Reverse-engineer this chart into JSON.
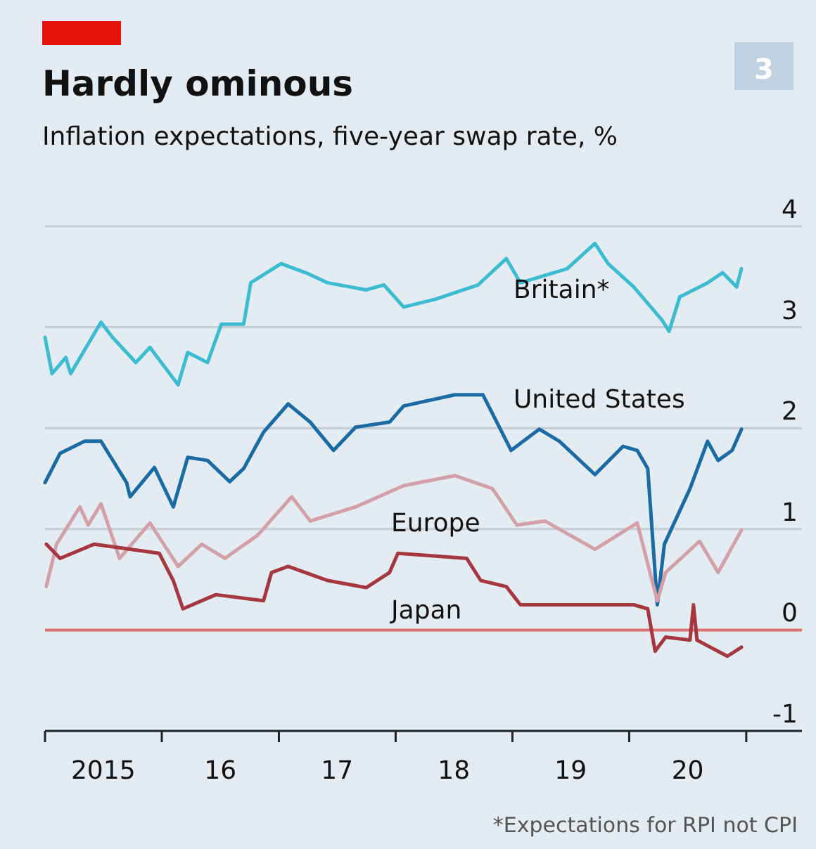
{
  "chart_data": {
    "type": "line",
    "title": "Hardly ominous",
    "subtitle": "Inflation expectations, five-year swap rate, %",
    "annotations": [
      "3",
      "*Expectations for RPI not CPI"
    ],
    "xlim": [
      "2015-01-01",
      "2021-06-24"
    ],
    "ylim": [
      -1,
      4
    ],
    "yticks": [
      4,
      3,
      2,
      1,
      0,
      -1
    ],
    "xticks": [
      {
        "value": "2015-01-01",
        "label": null
      },
      {
        "value": "2015-07-02",
        "label": "2015"
      },
      {
        "value": "2016-01-01",
        "label": null
      },
      {
        "value": "2016-07-02",
        "label": "16"
      },
      {
        "value": "2017-01-01",
        "label": null
      },
      {
        "value": "2017-07-02",
        "label": "17"
      },
      {
        "value": "2018-01-01",
        "label": null
      },
      {
        "value": "2018-07-02",
        "label": "18"
      },
      {
        "value": "2019-01-01",
        "label": null
      },
      {
        "value": "2019-07-02",
        "label": "19"
      },
      {
        "value": "2020-01-01",
        "label": null
      },
      {
        "value": "2020-07-02",
        "label": "20"
      },
      {
        "value": "2021-01-01",
        "label": null
      }
    ],
    "grid": "y",
    "legend": false,
    "line_style": "solid",
    "marker": "none",
    "ref_lines": [
      {
        "axis": "y",
        "value": 0,
        "label": null,
        "color": "#e07070"
      }
    ],
    "series": [
      {
        "name": "Britain*",
        "color": "#3bbcd0",
        "x": [
          "2015-01-01",
          "2015-01-23",
          "2015-03-07",
          "2015-03-22",
          "2015-06-25",
          "2015-07-31",
          "2015-10-12",
          "2015-11-25",
          "2016-02-21",
          "2016-03-22",
          "2016-05-23",
          "2016-07-05",
          "2016-09-13",
          "2016-10-05",
          "2017-01-08",
          "2017-03-26",
          "2017-06-03",
          "2017-10-01",
          "2017-11-25",
          "2018-01-26",
          "2018-05-08",
          "2018-09-16",
          "2018-12-13",
          "2019-01-26",
          "2019-06-21",
          "2019-09-16",
          "2019-10-27",
          "2020-01-15",
          "2020-04-13",
          "2020-05-05",
          "2020-06-07",
          "2020-09-02",
          "2020-10-19",
          "2020-12-02",
          "2020-12-17"
        ],
        "values": [
          2.9,
          2.54,
          2.7,
          2.54,
          3.05,
          2.9,
          2.65,
          2.8,
          2.43,
          2.75,
          2.65,
          3.03,
          3.03,
          3.44,
          3.63,
          3.54,
          3.44,
          3.37,
          3.42,
          3.2,
          3.28,
          3.42,
          3.68,
          3.44,
          3.58,
          3.83,
          3.63,
          3.4,
          3.07,
          2.96,
          3.3,
          3.44,
          3.54,
          3.4,
          3.58
        ]
      },
      {
        "name": "United States",
        "color": "#1a6aa3",
        "x": [
          "2015-01-01",
          "2015-02-17",
          "2015-05-05",
          "2015-06-25",
          "2015-09-13",
          "2015-09-24",
          "2015-12-09",
          "2016-02-06",
          "2016-03-22",
          "2016-05-23",
          "2016-07-31",
          "2016-09-13",
          "2016-11-14",
          "2017-01-30",
          "2017-04-09",
          "2017-06-21",
          "2017-08-29",
          "2017-12-13",
          "2018-01-26",
          "2018-07-05",
          "2018-10-01",
          "2018-12-28",
          "2019-03-26",
          "2019-05-28",
          "2019-09-16",
          "2019-12-13",
          "2020-01-26",
          "2020-02-28",
          "2020-03-29",
          "2020-04-20",
          "2020-07-09",
          "2020-09-02",
          "2020-10-05",
          "2020-11-18",
          "2020-12-17"
        ],
        "values": [
          1.46,
          1.75,
          1.87,
          1.87,
          1.46,
          1.32,
          1.61,
          1.22,
          1.71,
          1.68,
          1.47,
          1.6,
          1.96,
          2.24,
          2.06,
          1.78,
          2.01,
          2.06,
          2.22,
          2.33,
          2.33,
          1.78,
          1.99,
          1.87,
          1.54,
          1.82,
          1.78,
          1.6,
          0.25,
          0.85,
          1.4,
          1.87,
          1.68,
          1.78,
          1.99
        ]
      },
      {
        "name": "Europe",
        "color": "#d4a0a8",
        "x": [
          "2015-01-05",
          "2015-02-06",
          "2015-04-20",
          "2015-05-16",
          "2015-06-25",
          "2015-08-22",
          "2015-11-25",
          "2016-02-21",
          "2016-05-05",
          "2016-07-16",
          "2016-10-27",
          "2017-02-10",
          "2017-04-09",
          "2017-08-29",
          "2018-01-26",
          "2018-07-05",
          "2018-10-31",
          "2019-01-15",
          "2019-04-13",
          "2019-09-16",
          "2020-01-26",
          "2020-03-29",
          "2020-04-24",
          "2020-08-08",
          "2020-10-05",
          "2020-12-17"
        ],
        "values": [
          0.43,
          0.85,
          1.22,
          1.04,
          1.25,
          0.71,
          1.06,
          0.63,
          0.85,
          0.71,
          0.94,
          1.32,
          1.08,
          1.22,
          1.43,
          1.53,
          1.4,
          1.04,
          1.08,
          0.8,
          1.06,
          0.29,
          0.57,
          0.88,
          0.57,
          0.99
        ]
      },
      {
        "name": "Japan",
        "color": "#a6363f",
        "x": [
          "2015-01-05",
          "2015-02-17",
          "2015-06-03",
          "2015-12-24",
          "2016-02-06",
          "2016-03-07",
          "2016-06-18",
          "2016-11-14",
          "2016-12-09",
          "2017-01-30",
          "2017-06-03",
          "2017-10-01",
          "2017-12-13",
          "2018-01-08",
          "2018-08-11",
          "2018-09-24",
          "2018-12-13",
          "2019-01-26",
          "2020-01-15",
          "2020-02-28",
          "2020-03-22",
          "2020-04-24",
          "2020-07-09",
          "2020-07-20",
          "2020-07-31",
          "2020-11-03",
          "2020-12-17"
        ],
        "values": [
          0.85,
          0.71,
          0.85,
          0.76,
          0.49,
          0.21,
          0.35,
          0.29,
          0.57,
          0.63,
          0.49,
          0.42,
          0.57,
          0.76,
          0.71,
          0.49,
          0.43,
          0.25,
          0.25,
          0.21,
          -0.21,
          -0.07,
          -0.1,
          0.25,
          -0.1,
          -0.26,
          -0.17
        ]
      }
    ]
  }
}
